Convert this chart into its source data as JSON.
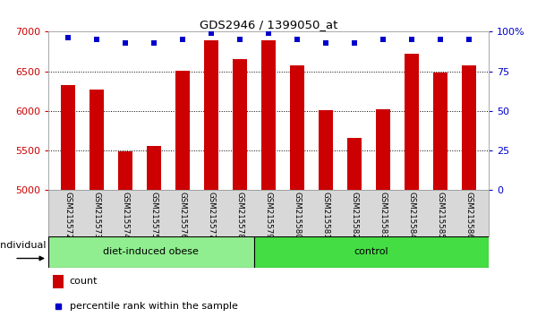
{
  "title": "GDS2946 / 1399050_at",
  "samples": [
    "GSM215572",
    "GSM215573",
    "GSM215574",
    "GSM215575",
    "GSM215576",
    "GSM215577",
    "GSM215578",
    "GSM215579",
    "GSM215580",
    "GSM215581",
    "GSM215582",
    "GSM215583",
    "GSM215584",
    "GSM215585",
    "GSM215586"
  ],
  "bar_values": [
    6330,
    6270,
    5490,
    5560,
    6510,
    6890,
    6650,
    6890,
    6570,
    6010,
    5660,
    6020,
    6720,
    6480,
    6570
  ],
  "percentile_values": [
    96,
    95,
    93,
    93,
    95,
    99,
    95,
    99,
    95,
    93,
    93,
    95,
    95,
    95,
    95
  ],
  "bar_color": "#cc0000",
  "dot_color": "#0000cc",
  "ylim_left": [
    5000,
    7000
  ],
  "ylim_right": [
    0,
    100
  ],
  "yticks_left": [
    5000,
    5500,
    6000,
    6500,
    7000
  ],
  "yticks_right": [
    0,
    25,
    50,
    75,
    100
  ],
  "group1_label": "diet-induced obese",
  "group2_label": "control",
  "group1_count": 7,
  "group1_color": "#90ee90",
  "group2_color": "#44dd44",
  "individual_label": "individual",
  "legend_count": "count",
  "legend_pct": "percentile rank within the sample",
  "background_color": "#d8d8d8",
  "dotgrid_lines": [
    6500,
    6000,
    5500
  ],
  "right_tick_color": "#0000cc",
  "left_tick_color": "#cc0000",
  "bar_width": 0.5
}
